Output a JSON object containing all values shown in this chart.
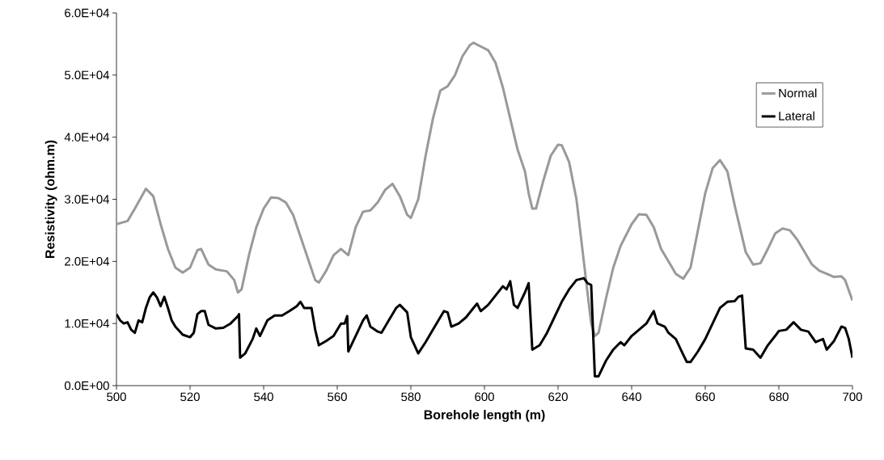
{
  "chart_data": {
    "type": "line",
    "xlabel": "Borehole length (m)",
    "ylabel": "Resistivity (ohm.m)",
    "xlim": [
      500,
      700
    ],
    "xticks": [
      500,
      520,
      540,
      560,
      580,
      600,
      620,
      640,
      660,
      680,
      700
    ],
    "ylim": [
      0,
      60000
    ],
    "yticks": [
      {
        "value": 0,
        "label": "0.0E+00"
      },
      {
        "value": 10000,
        "label": "1.0E+04"
      },
      {
        "value": 20000,
        "label": "2.0E+04"
      },
      {
        "value": 30000,
        "label": "3.0E+04"
      },
      {
        "value": 40000,
        "label": "4.0E+04"
      },
      {
        "value": 50000,
        "label": "5.0E+04"
      },
      {
        "value": 60000,
        "label": "6.0E+04"
      }
    ],
    "grid": false,
    "legend": "top right",
    "marker": "none",
    "line_style": "solid",
    "series": [
      {
        "name": "Normal",
        "color": "#999999",
        "x": [
          500,
          503,
          505,
          508,
          510,
          512,
          514,
          516,
          518,
          520,
          522,
          523,
          525,
          527,
          530,
          532,
          533,
          534,
          536,
          538,
          540,
          542,
          544,
          546,
          548,
          550,
          552,
          554,
          555,
          557,
          559,
          561,
          562,
          563,
          565,
          567,
          569,
          571,
          573,
          575,
          577,
          579,
          580,
          582,
          584,
          586,
          588,
          590,
          592,
          594,
          596,
          597,
          599,
          601,
          603,
          605,
          607,
          609,
          611,
          612,
          613,
          614,
          616,
          618,
          620,
          621,
          623,
          625,
          627,
          629,
          630,
          631,
          633,
          635,
          637,
          640,
          642,
          644,
          646,
          648,
          650,
          652,
          654,
          656,
          658,
          660,
          662,
          664,
          666,
          668,
          670,
          671,
          673,
          675,
          677,
          679,
          681,
          683,
          685,
          687,
          689,
          691,
          693,
          695,
          697,
          698,
          700
        ],
        "values": [
          26000,
          26500,
          28500,
          31700,
          30500,
          26000,
          22000,
          19000,
          18200,
          19000,
          21800,
          22000,
          19500,
          18700,
          18400,
          17000,
          15000,
          15500,
          21000,
          25500,
          28500,
          30300,
          30200,
          29500,
          27500,
          24000,
          20500,
          17000,
          16600,
          18500,
          21000,
          22000,
          21500,
          21000,
          25500,
          28000,
          28200,
          29500,
          31500,
          32500,
          30500,
          27500,
          27000,
          30000,
          37000,
          43000,
          47500,
          48200,
          50000,
          53000,
          54800,
          55200,
          54600,
          54000,
          52000,
          48000,
          43000,
          38000,
          34500,
          31000,
          28500,
          28500,
          33000,
          37000,
          38800,
          38700,
          36000,
          30000,
          20000,
          10000,
          8000,
          8500,
          14000,
          19000,
          22500,
          26000,
          27600,
          27500,
          25500,
          22000,
          20000,
          18000,
          17200,
          19000,
          25000,
          31000,
          35000,
          36300,
          34500,
          29000,
          24000,
          21500,
          19500,
          19700,
          22000,
          24500,
          25300,
          25000,
          23500,
          21500,
          19500,
          18500,
          18000,
          17500,
          17600,
          17000,
          13700
        ]
      },
      {
        "name": "Lateral",
        "color": "#000000",
        "x": [
          500,
          501,
          502,
          503,
          504,
          505,
          506,
          507,
          508,
          509,
          510,
          511,
          512,
          513,
          514,
          515,
          516,
          518,
          520,
          521,
          522,
          523,
          524,
          525,
          527,
          529,
          531,
          533,
          533.3,
          533.6,
          535,
          537,
          538,
          539,
          541,
          543,
          545,
          547,
          549,
          550,
          551,
          553,
          554,
          555,
          557,
          559,
          560,
          561,
          562,
          562.7,
          563,
          565,
          567,
          568,
          569,
          571,
          572,
          574,
          576,
          577,
          579,
          580,
          582,
          584,
          586,
          588,
          589,
          590,
          591,
          593,
          595,
          597,
          598,
          599,
          601,
          603,
          605,
          606,
          607,
          608,
          609,
          611,
          612,
          613,
          615,
          617,
          619,
          621,
          623,
          625,
          627,
          628,
          629,
          630,
          631,
          633,
          635,
          637,
          638,
          640,
          642,
          644,
          646,
          647,
          649,
          650,
          652,
          654,
          655,
          656,
          658,
          660,
          662,
          664,
          666,
          668,
          669,
          670,
          671,
          673,
          675,
          677,
          679,
          680,
          682,
          684,
          686,
          688,
          690,
          692,
          693,
          695,
          697,
          698,
          699,
          700
        ],
        "values": [
          11500,
          10500,
          10000,
          10200,
          9000,
          8500,
          10500,
          10200,
          12500,
          14200,
          15000,
          14200,
          12800,
          14300,
          12500,
          10500,
          9500,
          8200,
          7800,
          8500,
          11500,
          12000,
          12000,
          9800,
          9200,
          9300,
          10000,
          11200,
          11500,
          4500,
          5200,
          7500,
          9200,
          8000,
          10500,
          11300,
          11300,
          12000,
          12800,
          13500,
          12500,
          12500,
          9000,
          6500,
          7200,
          8000,
          9000,
          10000,
          10000,
          11200,
          5500,
          8000,
          10500,
          11300,
          9500,
          8700,
          8500,
          10500,
          12500,
          13000,
          11800,
          7800,
          5200,
          7000,
          9000,
          11000,
          12000,
          11800,
          9500,
          10000,
          11000,
          12500,
          13200,
          12000,
          13000,
          14500,
          16000,
          15500,
          16800,
          13000,
          12500,
          15000,
          16500,
          5800,
          6500,
          8500,
          11000,
          13500,
          15500,
          17000,
          17300,
          16500,
          16200,
          1500,
          1500,
          4000,
          5800,
          7000,
          6500,
          8000,
          9000,
          10000,
          12000,
          10000,
          9500,
          8500,
          7500,
          5000,
          3800,
          3800,
          5500,
          7500,
          10000,
          12500,
          13500,
          13600,
          14300,
          14500,
          6000,
          5800,
          4500,
          6500,
          8000,
          8800,
          9000,
          10200,
          9000,
          8700,
          7000,
          7500,
          5800,
          7200,
          9500,
          9300,
          7500,
          4500
        ]
      }
    ]
  }
}
